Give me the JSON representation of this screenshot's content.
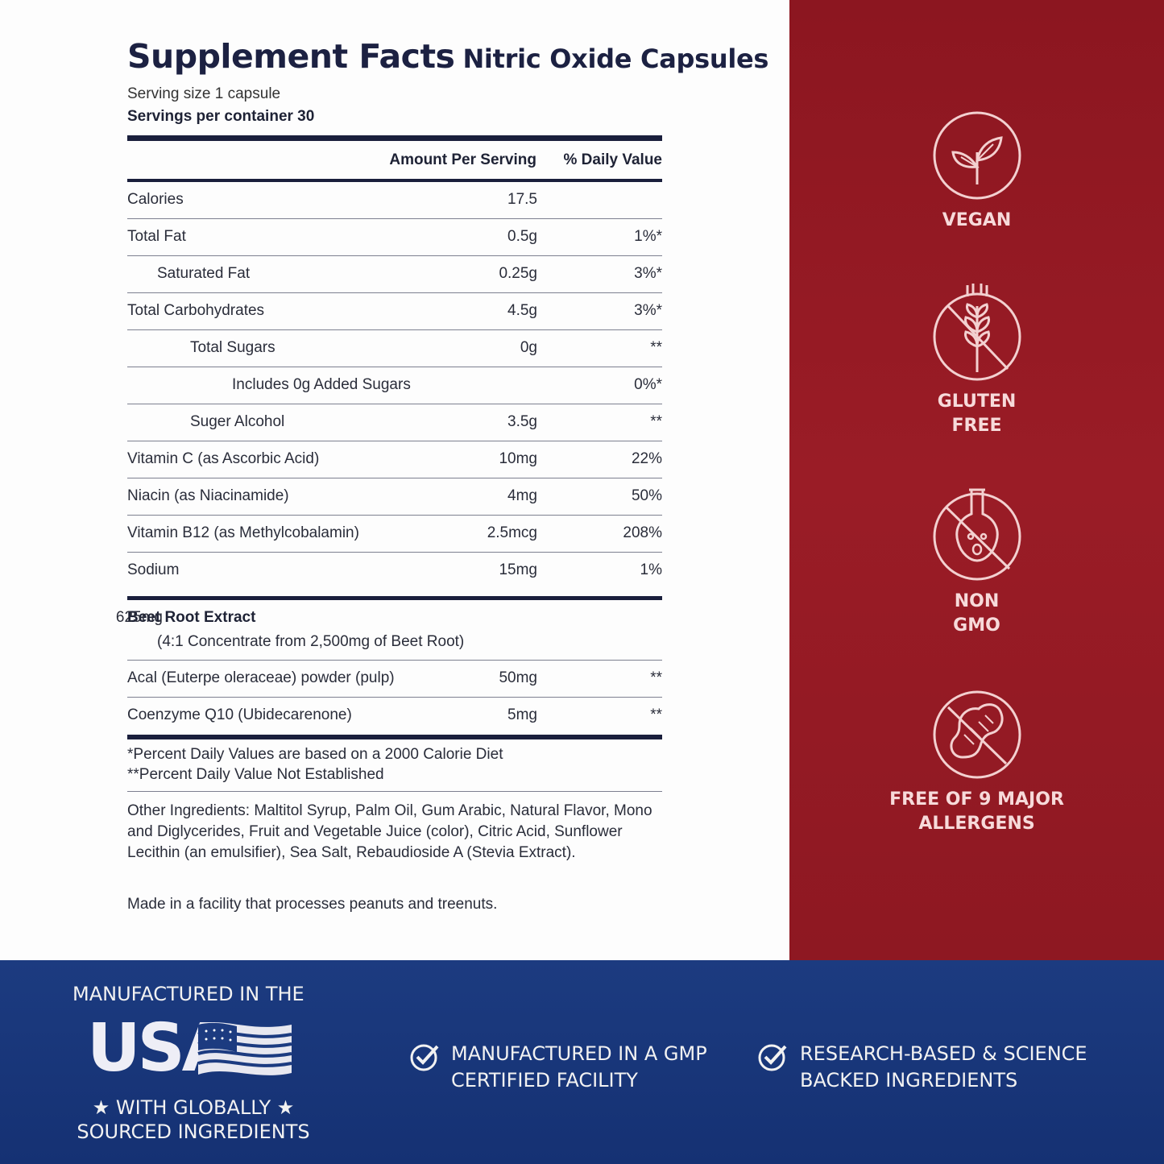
{
  "facts": {
    "title": "Supplement Facts",
    "subtitle": "Nitric Oxide Capsules",
    "serving_size": "Serving size 1 capsule",
    "servings_per_container": "Servings per container 30",
    "header_amount": "Amount Per Serving",
    "header_dv": "% Daily Value",
    "rows": [
      {
        "name": "Calories",
        "amount": "17.5",
        "dv": ""
      },
      {
        "name": "Total Fat",
        "amount": "0.5g",
        "dv": "1%*"
      },
      {
        "name": "Saturated Fat",
        "amount": "0.25g",
        "dv": "3%*"
      },
      {
        "name": "Total Carbohydrates",
        "amount": "4.5g",
        "dv": "3%*"
      },
      {
        "name": "Total Sugars",
        "amount": "0g",
        "dv": "**"
      },
      {
        "name": "Includes 0g Added Sugars",
        "amount": "",
        "dv": "0%*"
      },
      {
        "name": "Suger Alcohol",
        "amount": "3.5g",
        "dv": "**"
      },
      {
        "name": "Vitamin C (as Ascorbic Acid)",
        "amount": "10mg",
        "dv": "22%"
      },
      {
        "name": "Niacin (as Niacinamide)",
        "amount": "4mg",
        "dv": "50%"
      },
      {
        "name": "Vitamin B12 (as Methylcobalamin)",
        "amount": "2.5mcg",
        "dv": "208%"
      },
      {
        "name": "Sodium",
        "amount": "15mg",
        "dv": "1%"
      }
    ],
    "beet": {
      "name": "Beet Root Extract",
      "amount": "625mg",
      "sub": "(4:1 Concentrate from 2,500mg of Beet Root)"
    },
    "extra_rows": [
      {
        "name": "Acal (Euterpe oleraceae) powder (pulp)",
        "amount": "50mg",
        "dv": "**"
      },
      {
        "name": "Coenzyme Q10 (Ubidecarenone)",
        "amount": "5mg",
        "dv": "**"
      }
    ],
    "note1": "*Percent Daily Values are based on a 2000 Calorie Diet",
    "note2": "**Percent Daily Value Not Established",
    "other_ingredients": "Other Ingredients: Maltitol Syrup, Palm Oil, Gum Arabic, Natural Flavor, Mono and Diglycerides, Fruit and Vegetable Juice (color), Citric Acid, Sunflower Lecithin (an emulsifier), Sea Salt, Rebaudioside A (Stevia Extract).",
    "facility": "Made in a facility that processes peanuts and treenuts."
  },
  "badges": {
    "vegan": {
      "line1": "VEGAN",
      "line2": "",
      "icon": "leaf-icon"
    },
    "gluten": {
      "line1": "GLUTEN",
      "line2": "FREE",
      "icon": "wheat-crossed-icon"
    },
    "gmo": {
      "line1": "NON",
      "line2": "GMO",
      "icon": "flask-crossed-icon"
    },
    "allergen": {
      "line1": "FREE OF 9 MAJOR",
      "line2": "ALLERGENS",
      "icon": "peanut-crossed-icon"
    }
  },
  "footer": {
    "usa_top": "MANUFACTURED IN THE",
    "usa_big": "USA",
    "usa_bottom_1": "★ WITH GLOBALLY ★",
    "usa_bottom_2": "SOURCED INGREDIENTS",
    "claim1_line1": "MANUFACTURED IN A GMP",
    "claim1_line2": "CERTIFIED FACILITY",
    "claim2_line1": "RESEARCH-BASED & SCIENCE",
    "claim2_line2": "BACKED INGREDIENTS"
  },
  "colors": {
    "navy": "#1a1f3c",
    "red": "#941a24",
    "blue": "#1c3b80",
    "badge_text": "#f7dada"
  }
}
